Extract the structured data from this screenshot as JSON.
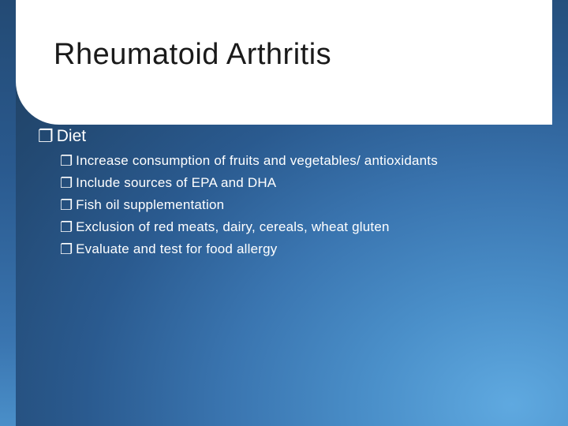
{
  "slide": {
    "title": "Rheumatoid Arthritis",
    "bullet_glyph": "❐",
    "level1": {
      "heading": "Diet"
    },
    "level2_items": [
      "Increase consumption of fruits and vegetables/ antioxidants",
      "Include sources of EPA and DHA",
      "Fish oil supplementation",
      "Exclusion of red meats, dairy, cereals, wheat gluten",
      "Evaluate and test for food allergy"
    ]
  },
  "style": {
    "title_color": "#1a1a1a",
    "text_color": "#ffffff",
    "title_fontsize": 38,
    "l1_fontsize": 21,
    "l2_fontsize": 17,
    "panel_bg": "#ffffff",
    "gradient_stops": [
      "#5fa9e0",
      "#4a8fc9",
      "#3a75b0",
      "#2a5a8f",
      "#234a74",
      "#1f3f5e"
    ]
  }
}
